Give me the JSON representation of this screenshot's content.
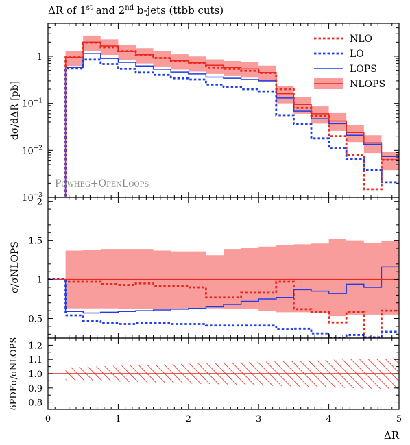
{
  "figure": {
    "title": "ΔR of 1st and 2nd b-jets (ttbb cuts)",
    "title_parts": {
      "pre": "ΔR of 1",
      "sup1": "st",
      "mid": " and 2",
      "sup2": "nd",
      "post": " b-jets (ttbb cuts)"
    },
    "watermark": "Powheg+OpenLoops",
    "colors": {
      "red": "#e8291c",
      "blue": "#1f3ee6",
      "band": "#f78b8b",
      "band_edge": "#ee5050"
    }
  },
  "chart_data": [
    {
      "type": "line",
      "panel": "main",
      "ylabel": "dσ/dΔR [pb]",
      "yscale": "log",
      "ylim": [
        0.001,
        5
      ],
      "xlim": [
        0,
        5
      ],
      "ytick_labels": [
        "10^-3",
        "10^-2",
        "10^-1",
        "1"
      ],
      "bin_edges": [
        0.25,
        0.5,
        0.75,
        1.0,
        1.25,
        1.5,
        1.75,
        2.0,
        2.25,
        2.5,
        2.75,
        3.0,
        3.25,
        3.5,
        3.75,
        4.0,
        4.25,
        4.5,
        4.75,
        5.0
      ],
      "legend_position": "top-right",
      "series": [
        {
          "name": "NLO",
          "style": "dotted-red",
          "values": [
            0.95,
            1.95,
            1.55,
            1.28,
            1.05,
            0.92,
            0.8,
            0.7,
            0.58,
            0.54,
            0.49,
            0.44,
            0.2,
            0.08,
            0.054,
            0.02,
            0.008,
            0.0015,
            0.0063
          ]
        },
        {
          "name": "LO",
          "style": "dotted-blue",
          "values": [
            0.55,
            0.85,
            0.68,
            0.54,
            0.45,
            0.4,
            0.34,
            0.32,
            0.25,
            0.22,
            0.2,
            0.18,
            0.056,
            0.036,
            0.018,
            0.011,
            0.0065,
            0.0038,
            0.0021
          ]
        },
        {
          "name": "LOPS",
          "style": "solid-blue",
          "values": [
            0.58,
            1.15,
            0.9,
            0.74,
            0.62,
            0.53,
            0.46,
            0.42,
            0.36,
            0.34,
            0.32,
            0.3,
            0.13,
            0.068,
            0.047,
            0.037,
            0.021,
            0.0135,
            0.0074
          ]
        },
        {
          "name": "NLOPS",
          "style": "solid-red-band",
          "values": [
            0.95,
            2.0,
            1.65,
            1.26,
            1.08,
            0.92,
            0.8,
            0.72,
            0.64,
            0.58,
            0.54,
            0.45,
            0.16,
            0.095,
            0.06,
            0.042,
            0.024,
            0.0145,
            0.0063
          ],
          "band_low": [
            0.62,
            1.3,
            1.07,
            0.82,
            0.7,
            0.6,
            0.52,
            0.47,
            0.42,
            0.38,
            0.35,
            0.29,
            0.1,
            0.06,
            0.037,
            0.026,
            0.015,
            0.0088,
            0.0038
          ],
          "band_high": [
            1.3,
            2.75,
            2.28,
            1.73,
            1.48,
            1.27,
            1.1,
            0.99,
            0.86,
            0.79,
            0.74,
            0.63,
            0.23,
            0.135,
            0.086,
            0.062,
            0.035,
            0.021,
            0.0093
          ]
        }
      ]
    },
    {
      "type": "line",
      "panel": "ratio",
      "ylabel": "σ/σNLOPS",
      "ylim": [
        0.25,
        2.05
      ],
      "ytick_labels": [
        "0.5",
        "1",
        "1.5",
        "2"
      ],
      "bin_edges": [
        0.25,
        0.5,
        0.75,
        1.0,
        1.25,
        1.5,
        1.75,
        2.0,
        2.25,
        2.5,
        2.75,
        3.0,
        3.25,
        3.5,
        3.75,
        4.0,
        4.25,
        4.5,
        4.75,
        5.0
      ],
      "series": [
        {
          "name": "NLO",
          "values": [
            0.97,
            0.97,
            0.94,
            0.93,
            0.95,
            0.92,
            0.92,
            0.9,
            0.77,
            0.77,
            0.83,
            0.83,
            0.97,
            0.62,
            0.58,
            0.45,
            0.58,
            0.2,
            0.6
          ]
        },
        {
          "name": "LO",
          "values": [
            0.54,
            0.47,
            0.44,
            0.43,
            0.44,
            0.44,
            0.43,
            0.43,
            0.41,
            0.41,
            0.41,
            0.41,
            0.36,
            0.37,
            0.31,
            0.25,
            0.29,
            0.26,
            0.33
          ]
        },
        {
          "name": "LOPS",
          "values": [
            0.59,
            0.57,
            0.58,
            0.59,
            0.6,
            0.61,
            0.62,
            0.63,
            0.65,
            0.68,
            0.72,
            0.75,
            0.77,
            0.87,
            0.85,
            0.82,
            0.94,
            0.9,
            1.16
          ]
        },
        {
          "name": "NLOPS",
          "values": [
            1.0,
            1.0,
            1.0,
            1.0,
            1.0,
            1.0,
            1.0,
            1.0,
            1.0,
            1.0,
            1.0,
            1.0,
            1.0,
            1.0,
            1.0,
            1.0,
            1.0,
            1.0,
            1.0
          ],
          "band_low": [
            0.63,
            0.63,
            0.63,
            0.62,
            0.62,
            0.62,
            0.62,
            0.62,
            0.63,
            0.62,
            0.62,
            0.6,
            0.58,
            0.58,
            0.57,
            0.53,
            0.55,
            0.55,
            0.55
          ],
          "band_high": [
            1.37,
            1.38,
            1.39,
            1.39,
            1.39,
            1.37,
            1.36,
            1.36,
            1.31,
            1.39,
            1.4,
            1.42,
            1.44,
            1.45,
            1.46,
            1.52,
            1.5,
            1.47,
            1.49
          ]
        }
      ],
      "pre_bin": {
        "x": [
          0,
          0.25
        ],
        "value": 1.0
      }
    },
    {
      "type": "area",
      "panel": "pdf",
      "ylabel": "δPDFσ/σNLOPS",
      "ylim": [
        0.75,
        1.25
      ],
      "ytick_labels": [
        "0.8",
        "0.9",
        "1.0",
        "1.1",
        "1.2"
      ],
      "xlabel": "ΔR",
      "xtick_labels": [
        "0",
        "1",
        "2",
        "3",
        "4",
        "5"
      ],
      "x": [
        0.25,
        5.0
      ],
      "band_low": [
        0.955,
        0.89
      ],
      "band_high": [
        1.045,
        1.11
      ]
    }
  ]
}
